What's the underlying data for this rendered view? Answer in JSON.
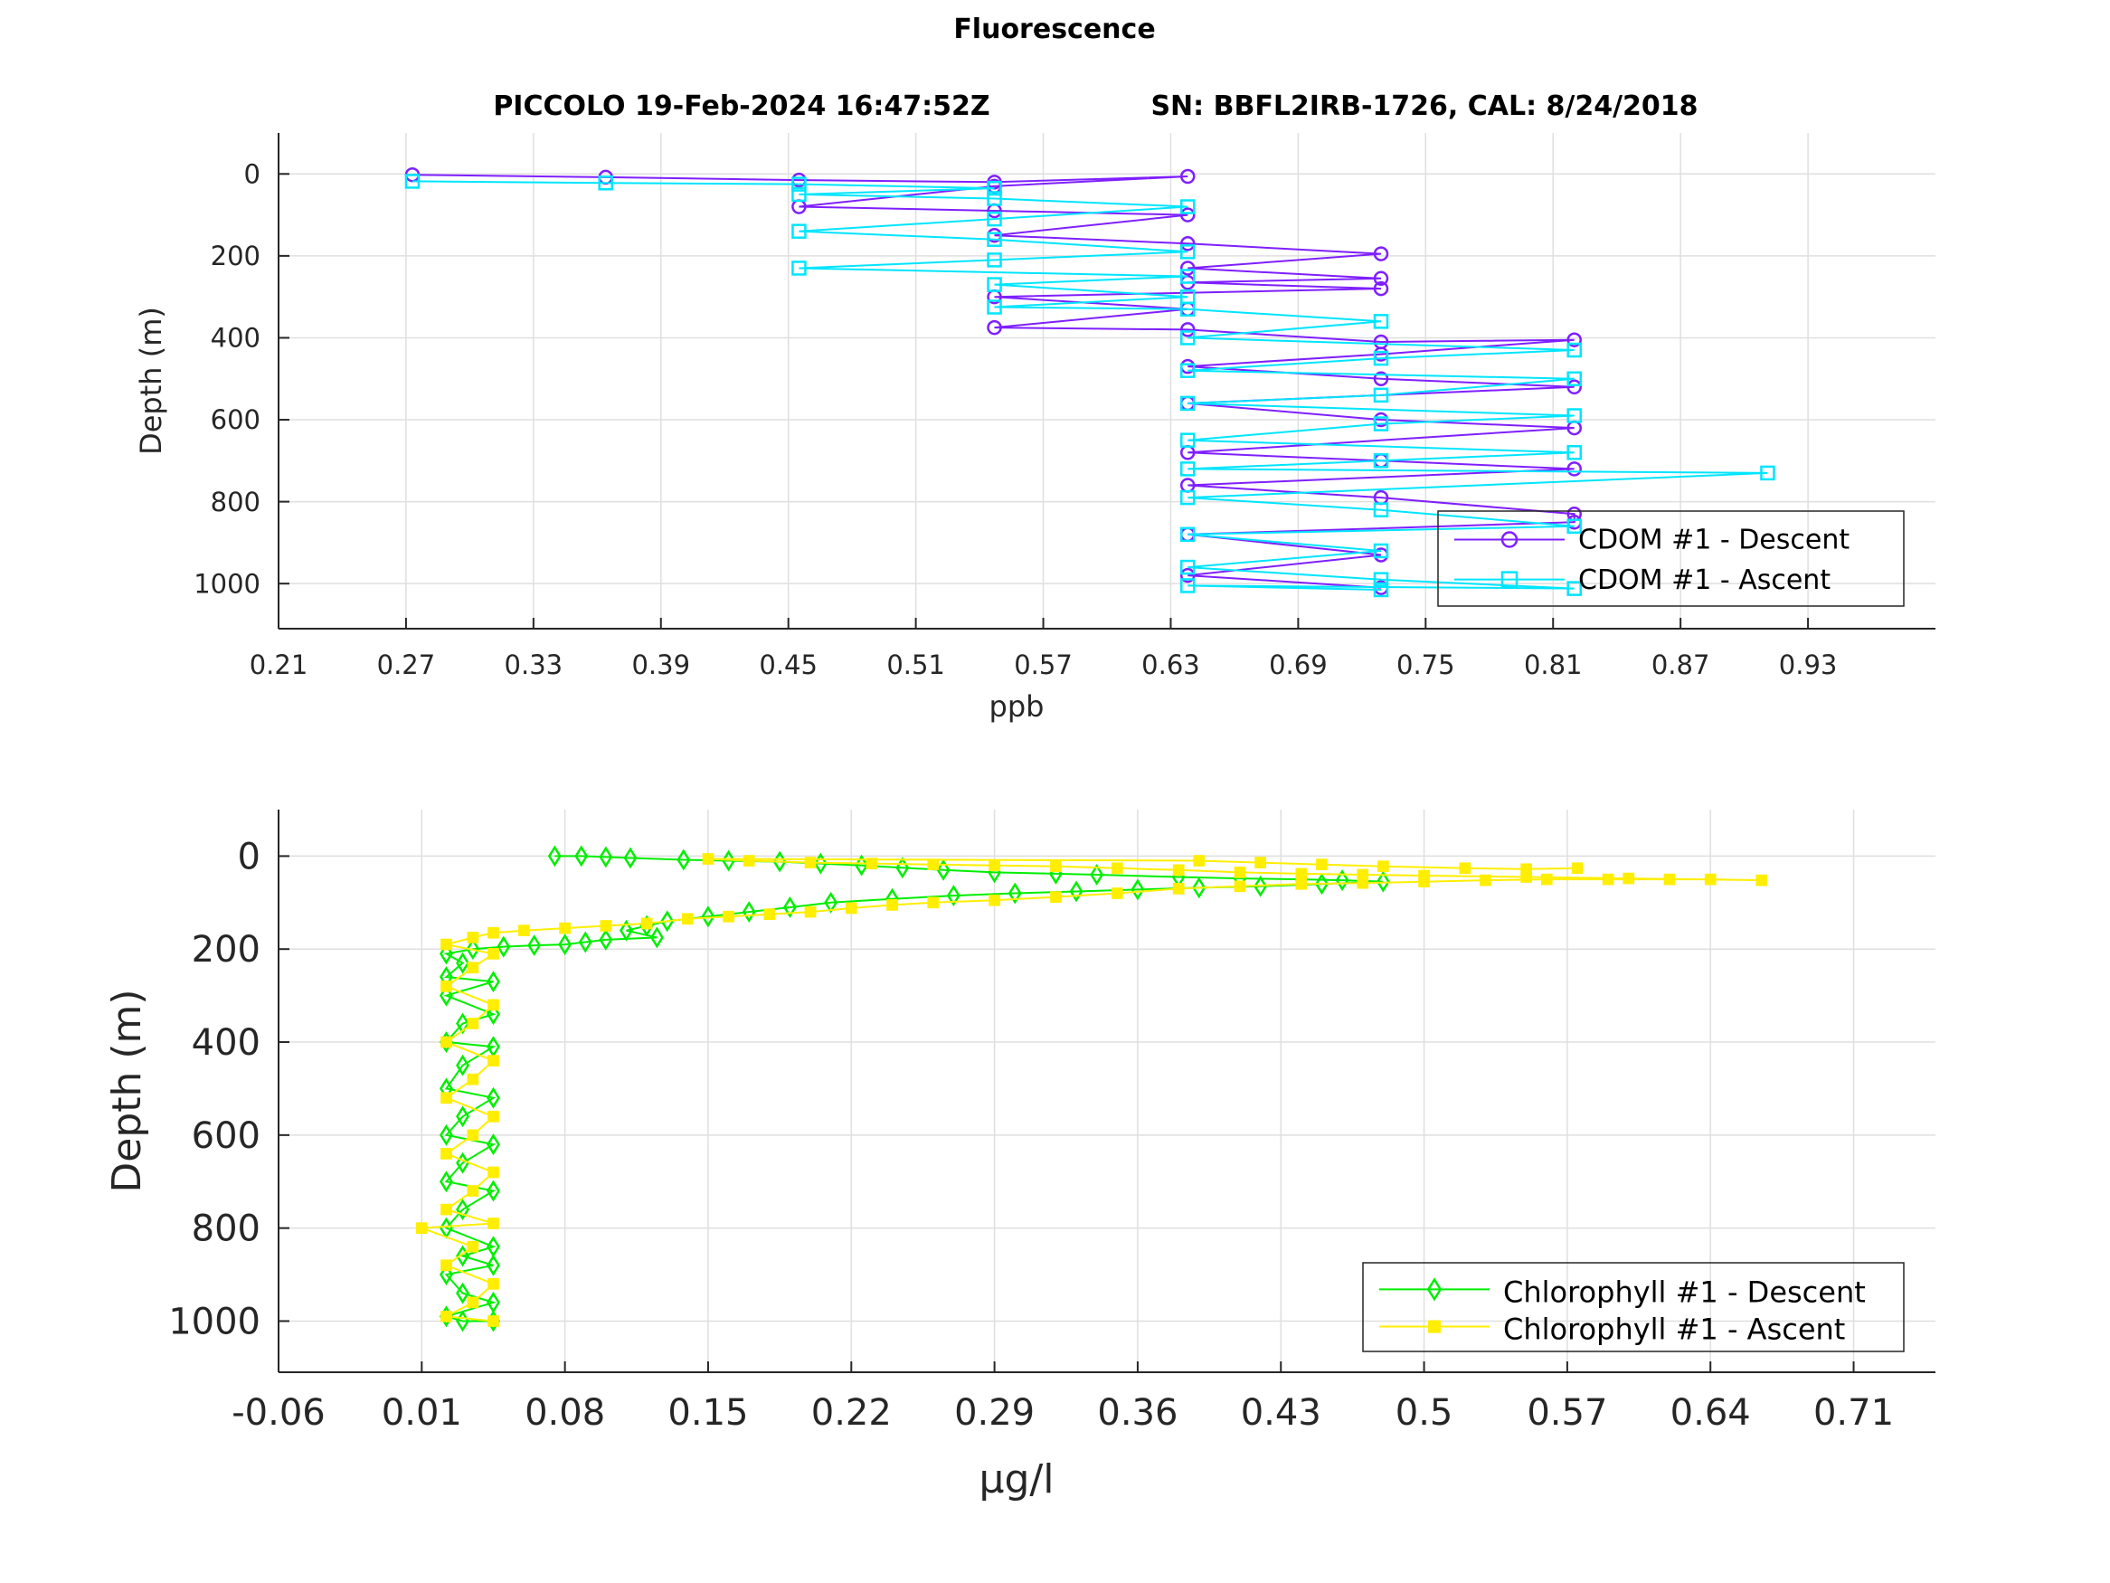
{
  "figure": {
    "title": "Fluorescence",
    "subtitle_left": "PICCOLO 19-Feb-2024 16:47:52Z",
    "subtitle_right": "SN: BBFL2IRB-1726, CAL: 8/24/2018"
  },
  "chart_data": [
    {
      "type": "line",
      "xlabel": "ppb",
      "ylabel": "Depth (m)",
      "xlim": [
        0.21,
        0.99
      ],
      "ylim": [
        -100,
        1110
      ],
      "y_reversed": true,
      "xticks": [
        "0.21",
        "0.27",
        "0.33",
        "0.39",
        "0.45",
        "0.51",
        "0.57",
        "0.63",
        "0.69",
        "0.75",
        "0.81",
        "0.87",
        "0.93"
      ],
      "xtick_values": [
        0.21,
        0.27,
        0.33,
        0.39,
        0.45,
        0.51,
        0.57,
        0.63,
        0.69,
        0.75,
        0.81,
        0.87,
        0.93
      ],
      "yticks": [
        "0",
        "200",
        "400",
        "600",
        "800",
        "1000"
      ],
      "ytick_values": [
        0,
        200,
        400,
        600,
        800,
        1000
      ],
      "grid": true,
      "legend_position": "bottom-right",
      "series": [
        {
          "name": "CDOM #1 - Descent",
          "color": "#7f1fff",
          "marker": "circle",
          "points": [
            [
              0.273,
              2
            ],
            [
              0.364,
              8
            ],
            [
              0.455,
              15
            ],
            [
              0.547,
              20
            ],
            [
              0.638,
              6
            ],
            [
              0.547,
              30
            ],
            [
              0.455,
              80
            ],
            [
              0.547,
              90
            ],
            [
              0.638,
              100
            ],
            [
              0.547,
              150
            ],
            [
              0.638,
              170
            ],
            [
              0.729,
              195
            ],
            [
              0.638,
              230
            ],
            [
              0.729,
              255
            ],
            [
              0.638,
              265
            ],
            [
              0.729,
              280
            ],
            [
              0.547,
              300
            ],
            [
              0.638,
              330
            ],
            [
              0.547,
              375
            ],
            [
              0.638,
              380
            ],
            [
              0.729,
              410
            ],
            [
              0.82,
              405
            ],
            [
              0.729,
              440
            ],
            [
              0.638,
              470
            ],
            [
              0.729,
              500
            ],
            [
              0.82,
              520
            ],
            [
              0.638,
              560
            ],
            [
              0.729,
              600
            ],
            [
              0.82,
              620
            ],
            [
              0.638,
              680
            ],
            [
              0.729,
              700
            ],
            [
              0.82,
              720
            ],
            [
              0.638,
              760
            ],
            [
              0.729,
              790
            ],
            [
              0.82,
              830
            ],
            [
              0.82,
              850
            ],
            [
              0.638,
              880
            ],
            [
              0.729,
              930
            ],
            [
              0.638,
              980
            ],
            [
              0.729,
              1010
            ]
          ]
        },
        {
          "name": "CDOM #1 - Ascent",
          "color": "#00e5ff",
          "marker": "square",
          "points": [
            [
              0.729,
              1015
            ],
            [
              0.638,
              1005
            ],
            [
              0.82,
              1012
            ],
            [
              0.729,
              990
            ],
            [
              0.638,
              960
            ],
            [
              0.729,
              920
            ],
            [
              0.638,
              880
            ],
            [
              0.82,
              860
            ],
            [
              0.729,
              820
            ],
            [
              0.638,
              790
            ],
            [
              0.911,
              730
            ],
            [
              0.638,
              720
            ],
            [
              0.729,
              700
            ],
            [
              0.82,
              680
            ],
            [
              0.638,
              650
            ],
            [
              0.729,
              610
            ],
            [
              0.82,
              590
            ],
            [
              0.638,
              560
            ],
            [
              0.729,
              540
            ],
            [
              0.82,
              500
            ],
            [
              0.638,
              480
            ],
            [
              0.729,
              450
            ],
            [
              0.82,
              430
            ],
            [
              0.638,
              400
            ],
            [
              0.729,
              360
            ],
            [
              0.638,
              330
            ],
            [
              0.547,
              325
            ],
            [
              0.638,
              300
            ],
            [
              0.547,
              270
            ],
            [
              0.638,
              250
            ],
            [
              0.455,
              230
            ],
            [
              0.547,
              210
            ],
            [
              0.638,
              190
            ],
            [
              0.547,
              160
            ],
            [
              0.455,
              140
            ],
            [
              0.547,
              110
            ],
            [
              0.638,
              80
            ],
            [
              0.547,
              60
            ],
            [
              0.455,
              50
            ],
            [
              0.547,
              35
            ],
            [
              0.455,
              25
            ],
            [
              0.364,
              22
            ],
            [
              0.273,
              18
            ]
          ]
        }
      ]
    },
    {
      "type": "line",
      "xlabel": "μg/l",
      "ylabel": "Depth (m)",
      "xlim": [
        -0.06,
        0.75
      ],
      "ylim": [
        -100,
        1110
      ],
      "y_reversed": true,
      "xticks": [
        "-0.06",
        "0.01",
        "0.08",
        "0.15",
        "0.22",
        "0.29",
        "0.36",
        "0.43",
        "0.5",
        "0.57",
        "0.64",
        "0.71"
      ],
      "xtick_values": [
        -0.06,
        0.01,
        0.08,
        0.15,
        0.22,
        0.29,
        0.36,
        0.43,
        0.5,
        0.57,
        0.64,
        0.71
      ],
      "yticks": [
        "0",
        "200",
        "400",
        "600",
        "800",
        "1000"
      ],
      "ytick_values": [
        0,
        200,
        400,
        600,
        800,
        1000
      ],
      "grid": true,
      "legend_position": "bottom-right",
      "series": [
        {
          "name": "Chlorophyll #1 - Descent",
          "color": "#00ee00",
          "marker": "diamond",
          "points": [
            [
              0.075,
              0
            ],
            [
              0.088,
              0
            ],
            [
              0.1,
              2
            ],
            [
              0.112,
              4
            ],
            [
              0.138,
              8
            ],
            [
              0.16,
              10
            ],
            [
              0.185,
              12
            ],
            [
              0.205,
              16
            ],
            [
              0.225,
              20
            ],
            [
              0.245,
              25
            ],
            [
              0.265,
              30
            ],
            [
              0.29,
              35
            ],
            [
              0.32,
              38
            ],
            [
              0.34,
              40
            ],
            [
              0.38,
              45
            ],
            [
              0.41,
              48
            ],
            [
              0.44,
              50
            ],
            [
              0.46,
              52
            ],
            [
              0.48,
              55
            ],
            [
              0.45,
              60
            ],
            [
              0.42,
              65
            ],
            [
              0.39,
              68
            ],
            [
              0.36,
              72
            ],
            [
              0.33,
              76
            ],
            [
              0.3,
              80
            ],
            [
              0.27,
              85
            ],
            [
              0.24,
              92
            ],
            [
              0.21,
              100
            ],
            [
              0.19,
              110
            ],
            [
              0.17,
              120
            ],
            [
              0.15,
              130
            ],
            [
              0.13,
              140
            ],
            [
              0.12,
              150
            ],
            [
              0.11,
              160
            ],
            [
              0.125,
              175
            ],
            [
              0.1,
              180
            ],
            [
              0.09,
              185
            ],
            [
              0.08,
              190
            ],
            [
              0.065,
              192
            ],
            [
              0.05,
              195
            ],
            [
              0.035,
              200
            ],
            [
              0.022,
              210
            ],
            [
              0.03,
              230
            ],
            [
              0.022,
              260
            ],
            [
              0.045,
              270
            ],
            [
              0.022,
              300
            ],
            [
              0.045,
              340
            ],
            [
              0.03,
              360
            ],
            [
              0.022,
              400
            ],
            [
              0.045,
              410
            ],
            [
              0.03,
              450
            ],
            [
              0.022,
              500
            ],
            [
              0.045,
              520
            ],
            [
              0.03,
              560
            ],
            [
              0.022,
              600
            ],
            [
              0.045,
              620
            ],
            [
              0.03,
              660
            ],
            [
              0.022,
              700
            ],
            [
              0.045,
              720
            ],
            [
              0.03,
              760
            ],
            [
              0.022,
              800
            ],
            [
              0.045,
              840
            ],
            [
              0.03,
              860
            ],
            [
              0.045,
              880
            ],
            [
              0.022,
              900
            ],
            [
              0.03,
              940
            ],
            [
              0.045,
              960
            ],
            [
              0.022,
              990
            ],
            [
              0.03,
              1000
            ],
            [
              0.045,
              1000
            ]
          ]
        },
        {
          "name": "Chlorophyll #1 - Ascent",
          "color": "#ffee00",
          "marker": "square-filled",
          "points": [
            [
              0.045,
              1000
            ],
            [
              0.022,
              990
            ],
            [
              0.035,
              960
            ],
            [
              0.045,
              920
            ],
            [
              0.022,
              880
            ],
            [
              0.035,
              840
            ],
            [
              0.01,
              800
            ],
            [
              0.045,
              790
            ],
            [
              0.022,
              760
            ],
            [
              0.035,
              720
            ],
            [
              0.045,
              680
            ],
            [
              0.022,
              640
            ],
            [
              0.035,
              600
            ],
            [
              0.045,
              560
            ],
            [
              0.022,
              520
            ],
            [
              0.035,
              480
            ],
            [
              0.045,
              440
            ],
            [
              0.022,
              400
            ],
            [
              0.035,
              360
            ],
            [
              0.045,
              320
            ],
            [
              0.022,
              280
            ],
            [
              0.035,
              240
            ],
            [
              0.045,
              210
            ],
            [
              0.022,
              190
            ],
            [
              0.035,
              175
            ],
            [
              0.045,
              165
            ],
            [
              0.06,
              160
            ],
            [
              0.08,
              155
            ],
            [
              0.1,
              150
            ],
            [
              0.12,
              145
            ],
            [
              0.14,
              135
            ],
            [
              0.16,
              130
            ],
            [
              0.18,
              125
            ],
            [
              0.2,
              120
            ],
            [
              0.22,
              112
            ],
            [
              0.24,
              105
            ],
            [
              0.26,
              100
            ],
            [
              0.29,
              95
            ],
            [
              0.32,
              88
            ],
            [
              0.35,
              80
            ],
            [
              0.38,
              70
            ],
            [
              0.41,
              65
            ],
            [
              0.44,
              60
            ],
            [
              0.47,
              58
            ],
            [
              0.5,
              55
            ],
            [
              0.53,
              52
            ],
            [
              0.56,
              50
            ],
            [
              0.59,
              50
            ],
            [
              0.62,
              50
            ],
            [
              0.64,
              50
            ],
            [
              0.665,
              52
            ],
            [
              0.6,
              48
            ],
            [
              0.55,
              45
            ],
            [
              0.5,
              42
            ],
            [
              0.47,
              40
            ],
            [
              0.44,
              38
            ],
            [
              0.41,
              35
            ],
            [
              0.38,
              30
            ],
            [
              0.35,
              26
            ],
            [
              0.32,
              22
            ],
            [
              0.29,
              20
            ],
            [
              0.26,
              18
            ],
            [
              0.23,
              16
            ],
            [
              0.2,
              14
            ],
            [
              0.17,
              10
            ],
            [
              0.15,
              6
            ],
            [
              0.39,
              10
            ],
            [
              0.42,
              14
            ],
            [
              0.45,
              18
            ],
            [
              0.48,
              22
            ],
            [
              0.52,
              26
            ],
            [
              0.55,
              28
            ],
            [
              0.575,
              26
            ]
          ]
        }
      ]
    }
  ]
}
